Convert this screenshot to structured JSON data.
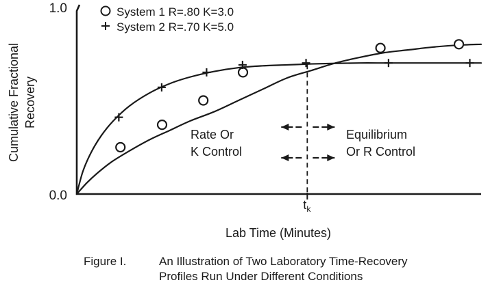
{
  "chart_data": {
    "type": "line",
    "title": "",
    "xlabel": "Lab Time (Minutes)",
    "ylabel": "Cumulative Fractional Recovery",
    "ylabel_lines": [
      "Cumulative Fractional",
      "Recovery"
    ],
    "ylim": [
      0,
      1
    ],
    "y_ticks": [
      {
        "value": 0,
        "label": "0.0"
      },
      {
        "value": 1,
        "label": "1.0"
      }
    ],
    "x_ticks": [
      {
        "value": 5.7,
        "label": "t",
        "sub": "k"
      }
    ],
    "xlim": [
      0,
      10
    ],
    "grid": false,
    "legend": {
      "placement": "top-left",
      "entries": [
        {
          "marker": "○",
          "text": "System 1  R=.80  K=3.0"
        },
        {
          "marker": "+",
          "text": "System 2  R=.70  K=5.0"
        }
      ]
    },
    "series": [
      {
        "marker": "circle",
        "R": 0.8,
        "K": 3.0,
        "curve": {
          "x": [
            0,
            0.25,
            0.5,
            0.85,
            1.3,
            1.8,
            2.3,
            2.8,
            3.4,
            4.0,
            4.6,
            5.2,
            5.8,
            6.4,
            7.0,
            7.6,
            8.2,
            8.8,
            9.4,
            10
          ],
          "y": [
            0,
            0.06,
            0.11,
            0.17,
            0.23,
            0.29,
            0.34,
            0.39,
            0.44,
            0.5,
            0.56,
            0.62,
            0.66,
            0.7,
            0.73,
            0.755,
            0.77,
            0.785,
            0.795,
            0.8
          ]
        },
        "points": {
          "x": [
            1.08,
            2.11,
            3.13,
            4.11,
            7.51,
            9.45
          ],
          "y": [
            0.25,
            0.37,
            0.5,
            0.65,
            0.78,
            0.8
          ]
        }
      },
      {
        "marker": "plus",
        "R": 0.7,
        "K": 5.0,
        "curve": {
          "x": [
            0,
            0.15,
            0.35,
            0.6,
            0.9,
            1.3,
            1.8,
            2.3,
            2.8,
            3.4,
            4.0,
            4.6,
            5.2,
            5.8,
            6.4,
            7.0,
            7.6,
            8.2,
            8.8,
            9.4,
            10
          ],
          "y": [
            0,
            0.12,
            0.22,
            0.31,
            0.39,
            0.47,
            0.54,
            0.59,
            0.625,
            0.655,
            0.675,
            0.685,
            0.69,
            0.695,
            0.698,
            0.7,
            0.7,
            0.7,
            0.7,
            0.7,
            0.7
          ]
        },
        "points": {
          "x": [
            1.04,
            2.1,
            3.21,
            4.1,
            5.67,
            7.71,
            9.72
          ],
          "y": [
            0.41,
            0.57,
            0.65,
            0.69,
            0.7,
            0.7,
            0.7
          ]
        }
      }
    ],
    "annotations": {
      "divider_x": 5.7,
      "left_region": [
        "Rate Or",
        "K Control"
      ],
      "right_region": [
        "Equilibrium",
        "Or R Control"
      ]
    },
    "caption": {
      "label": "Figure I.",
      "lines": [
        "An Illustration of Two Laboratory Time-Recovery",
        "Profiles Run Under Different Conditions"
      ]
    }
  }
}
